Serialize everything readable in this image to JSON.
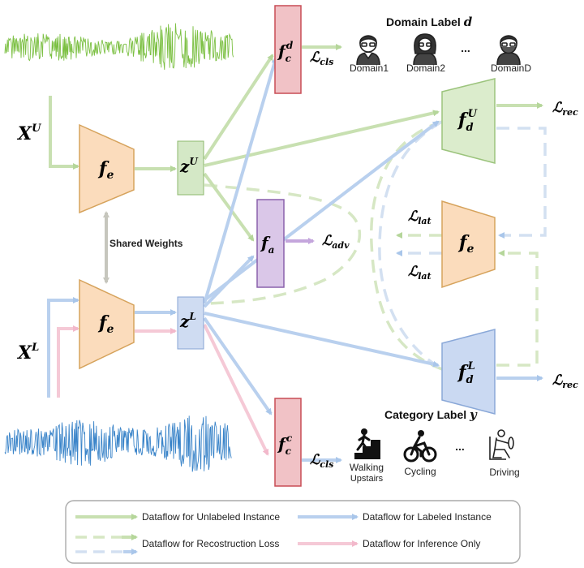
{
  "inputs": {
    "unlabeled_symbol": "X",
    "unlabeled_sup": "U",
    "labeled_symbol": "X",
    "labeled_sup": "L"
  },
  "encoders": {
    "fe_symbol": "f",
    "fe_sub": "e",
    "shared_weights": "Shared Weights"
  },
  "latents": {
    "zu_symbol": "z",
    "zu_sup": "U",
    "zl_symbol": "z",
    "zl_sup": "L"
  },
  "classifiers": {
    "domain_symbol": "f",
    "domain_sub": "c",
    "domain_sup": "d",
    "category_symbol": "f",
    "category_sub": "c",
    "category_sup": "c",
    "adv_symbol": "f",
    "adv_sub": "a"
  },
  "decoders": {
    "du_symbol": "f",
    "du_sub": "d",
    "du_sup": "U",
    "dl_symbol": "f",
    "dl_sub": "d",
    "dl_sup": "L",
    "fe_symbol": "f",
    "fe_sub": "e"
  },
  "losses": {
    "L": "ℒ",
    "cls": "cls",
    "adv": "adv",
    "rec": "rec",
    "lat": "lat"
  },
  "domain_label": {
    "title": "Domain Label",
    "title_var": "d",
    "items": [
      "Domain1",
      "Domain2",
      "DomainD"
    ],
    "ellipsis": "..."
  },
  "category_label": {
    "title": "Category Label",
    "title_var": "y",
    "items": [
      "Walking",
      "Upstairs",
      "Cycling",
      "Driving"
    ],
    "ellipsis": "..."
  },
  "legend": {
    "unlabeled": "Dataflow for Unlabeled Instance",
    "labeled": "Dataflow for Labeled Instance",
    "reconstruction": "Dataflow for  Recostruction Loss",
    "inference": "Dataflow for Inference Only"
  },
  "colors": {
    "green": "#b5d69a",
    "blue": "#a9c6ea",
    "pink": "#f2b8cb",
    "encoder_fill": "#fbdcbc",
    "encoder_stroke": "#d6a35c",
    "classifier_fill": "#f1c2c6",
    "classifier_stroke": "#c84c55",
    "adv_fill": "#dac7e8",
    "adv_stroke": "#8a61ac",
    "zu_fill": "#d4e8c6",
    "zl_fill": "#cfdcf2",
    "du_fill": "#dbeccc",
    "dl_fill": "#cad9f2"
  }
}
